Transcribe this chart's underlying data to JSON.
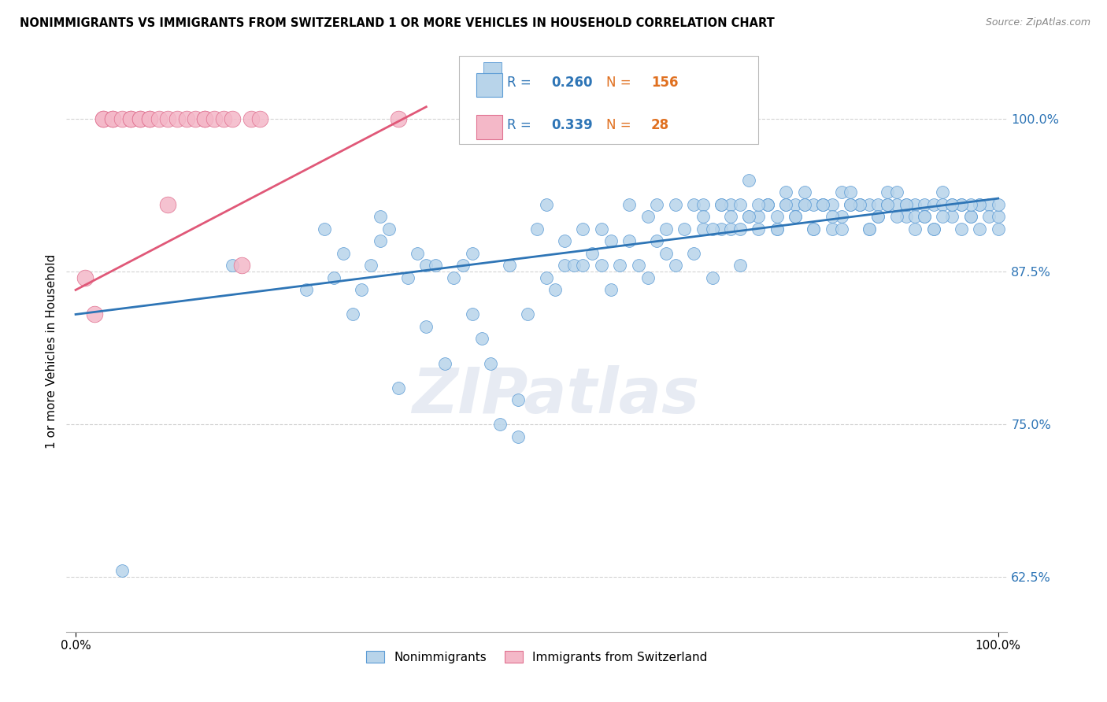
{
  "title": "NONIMMIGRANTS VS IMMIGRANTS FROM SWITZERLAND 1 OR MORE VEHICLES IN HOUSEHOLD CORRELATION CHART",
  "source": "Source: ZipAtlas.com",
  "ylabel": "1 or more Vehicles in Household",
  "yticks": [
    62.5,
    75.0,
    87.5,
    100.0
  ],
  "ytick_labels": [
    "62.5%",
    "75.0%",
    "87.5%",
    "100.0%"
  ],
  "xlim": [
    0,
    100
  ],
  "ylim": [
    58,
    104
  ],
  "blue_R": 0.26,
  "blue_N": 156,
  "pink_R": 0.339,
  "pink_N": 28,
  "blue_color": "#b8d4ea",
  "blue_edge_color": "#5b9bd5",
  "blue_line_color": "#2e75b6",
  "pink_color": "#f4b8c8",
  "pink_edge_color": "#e07090",
  "pink_line_color": "#e05878",
  "legend_R_color": "#2e75b6",
  "legend_N_color": "#e07020",
  "blue_line_y_start": 84.0,
  "blue_line_y_end": 93.5,
  "pink_line_x_start": 0,
  "pink_line_x_end": 38,
  "pink_line_y_start": 86.0,
  "pink_line_y_end": 101.0,
  "blue_x": [
    5,
    17,
    25,
    27,
    28,
    29,
    30,
    31,
    32,
    33,
    33,
    34,
    35,
    36,
    37,
    38,
    38,
    39,
    40,
    41,
    42,
    43,
    43,
    44,
    45,
    46,
    47,
    48,
    48,
    49,
    50,
    51,
    51,
    52,
    53,
    53,
    54,
    55,
    55,
    56,
    57,
    57,
    58,
    58,
    59,
    60,
    60,
    61,
    62,
    62,
    63,
    63,
    64,
    64,
    65,
    65,
    66,
    67,
    67,
    68,
    68,
    69,
    70,
    70,
    71,
    71,
    72,
    72,
    73,
    73,
    74,
    74,
    75,
    75,
    76,
    76,
    77,
    77,
    78,
    78,
    79,
    79,
    80,
    80,
    81,
    81,
    82,
    82,
    83,
    83,
    84,
    84,
    85,
    85,
    86,
    86,
    87,
    87,
    88,
    88,
    89,
    89,
    90,
    90,
    91,
    91,
    92,
    92,
    93,
    93,
    94,
    94,
    95,
    95,
    96,
    96,
    97,
    97,
    98,
    98,
    99,
    99,
    100,
    100,
    100,
    98,
    97,
    96,
    95,
    94,
    93,
    92,
    91,
    90,
    89,
    88,
    87,
    86,
    85,
    84,
    83,
    82,
    81,
    80,
    79,
    78,
    77,
    76,
    75,
    74,
    73,
    72,
    71,
    70,
    69,
    68
  ],
  "blue_y": [
    63,
    88,
    86,
    91,
    87,
    89,
    84,
    86,
    88,
    90,
    92,
    91,
    78,
    87,
    89,
    83,
    88,
    88,
    80,
    87,
    88,
    84,
    89,
    82,
    80,
    75,
    88,
    74,
    77,
    84,
    91,
    87,
    93,
    86,
    88,
    90,
    88,
    88,
    91,
    89,
    91,
    88,
    86,
    90,
    88,
    93,
    90,
    88,
    92,
    87,
    90,
    93,
    91,
    89,
    88,
    93,
    91,
    93,
    89,
    91,
    93,
    87,
    91,
    93,
    91,
    93,
    88,
    93,
    92,
    95,
    91,
    92,
    93,
    93,
    92,
    91,
    94,
    93,
    93,
    92,
    94,
    93,
    93,
    91,
    93,
    93,
    91,
    93,
    94,
    92,
    93,
    94,
    93,
    93,
    91,
    93,
    92,
    93,
    94,
    93,
    94,
    93,
    92,
    93,
    93,
    92,
    93,
    92,
    93,
    91,
    94,
    93,
    93,
    92,
    91,
    93,
    92,
    92,
    91,
    93,
    93,
    92,
    91,
    92,
    93,
    93,
    93,
    93,
    93,
    92,
    91,
    92,
    91,
    93,
    92,
    93,
    92,
    91,
    93,
    93,
    91,
    92,
    93,
    91,
    93,
    92,
    93,
    91,
    93,
    93,
    92,
    91,
    92,
    93,
    91,
    92
  ],
  "pink_x": [
    1,
    2,
    3,
    3,
    4,
    4,
    5,
    6,
    6,
    7,
    7,
    8,
    8,
    9,
    10,
    10,
    11,
    12,
    13,
    14,
    14,
    15,
    16,
    17,
    18,
    19,
    20,
    35
  ],
  "pink_y": [
    87,
    84,
    100,
    100,
    100,
    100,
    100,
    100,
    100,
    100,
    100,
    100,
    100,
    100,
    93,
    100,
    100,
    100,
    100,
    100,
    100,
    100,
    100,
    100,
    88,
    100,
    100,
    100
  ]
}
